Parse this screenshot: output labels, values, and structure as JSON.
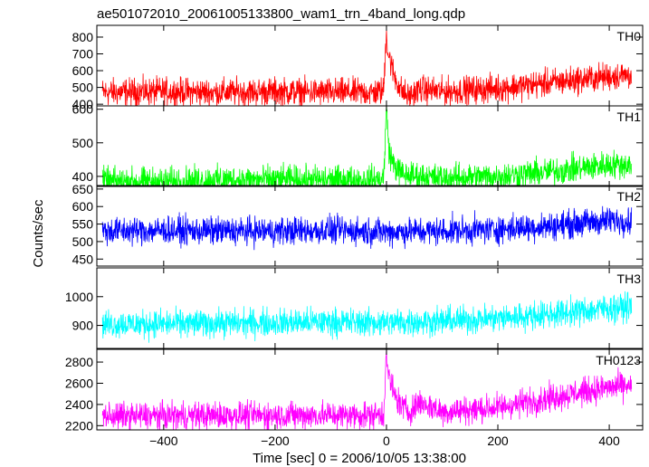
{
  "chart_data": {
    "type": "line",
    "title": "ae501072010_20061005133800_wam1_trn_4band_long.qdp",
    "xlabel": "Time [sec] 0 = 2006/10/05 13:38:00",
    "ylabel": "Counts/sec",
    "xlim": [
      -520,
      460
    ],
    "xticks": [
      -400,
      -200,
      0,
      200,
      400
    ],
    "panels": [
      {
        "name": "TH0",
        "color": "#ff0000",
        "ylim": [
          390,
          870
        ],
        "yticks": [
          400,
          500,
          600,
          700,
          800
        ],
        "ytick_labels": [
          "400",
          "500",
          "600",
          "700",
          "800"
        ],
        "x": [
          -510,
          -400,
          -300,
          -200,
          -100,
          -20,
          -5,
          0,
          2,
          8,
          15,
          25,
          40,
          60,
          100,
          200,
          300,
          400,
          440
        ],
        "y": [
          470,
          475,
          470,
          475,
          470,
          470,
          480,
          860,
          720,
          640,
          560,
          490,
          440,
          490,
          475,
          495,
          530,
          565,
          575
        ]
      },
      {
        "name": "TH1",
        "color": "#00ff00",
        "ylim": [
          370,
          610
        ],
        "yticks": [
          400,
          500,
          600
        ],
        "ytick_labels": [
          "400",
          "500",
          "600"
        ],
        "x": [
          -510,
          -400,
          -300,
          -200,
          -100,
          -20,
          -5,
          0,
          5,
          15,
          30,
          60,
          100,
          200,
          300,
          400,
          440
        ],
        "y": [
          385,
          385,
          390,
          390,
          390,
          390,
          395,
          600,
          470,
          430,
          405,
          400,
          395,
          400,
          415,
          435,
          435
        ]
      },
      {
        "name": "TH2",
        "color": "#0000ff",
        "ylim": [
          430,
          660
        ],
        "yticks": [
          450,
          500,
          550,
          600,
          650
        ],
        "ytick_labels": [
          "450",
          "500",
          "550",
          "600",
          "650"
        ],
        "x": [
          -510,
          -400,
          -300,
          -200,
          -100,
          0,
          100,
          200,
          300,
          400,
          440
        ],
        "y": [
          530,
          532,
          530,
          530,
          532,
          528,
          530,
          535,
          545,
          560,
          560
        ]
      },
      {
        "name": "TH3",
        "color": "#00ffff",
        "ylim": [
          820,
          1100
        ],
        "yticks": [
          900,
          1000
        ],
        "ytick_labels": [
          "900",
          "1000"
        ],
        "x": [
          -510,
          -400,
          -300,
          -200,
          -100,
          0,
          100,
          200,
          300,
          400,
          440
        ],
        "y": [
          905,
          905,
          908,
          910,
          912,
          910,
          915,
          925,
          940,
          960,
          965
        ]
      },
      {
        "name": "TH0123",
        "color": "#ff00ff",
        "ylim": [
          2160,
          2920
        ],
        "yticks": [
          2200,
          2400,
          2600,
          2800
        ],
        "ytick_labels": [
          "2200",
          "2400",
          "2600",
          "2800"
        ],
        "x": [
          -510,
          -400,
          -300,
          -200,
          -100,
          -20,
          -5,
          0,
          2,
          8,
          15,
          25,
          40,
          60,
          100,
          200,
          300,
          400,
          440
        ],
        "y": [
          2290,
          2290,
          2295,
          2295,
          2300,
          2300,
          2310,
          2900,
          2700,
          2600,
          2480,
          2400,
          2330,
          2420,
          2330,
          2370,
          2470,
          2560,
          2580
        ]
      }
    ]
  }
}
